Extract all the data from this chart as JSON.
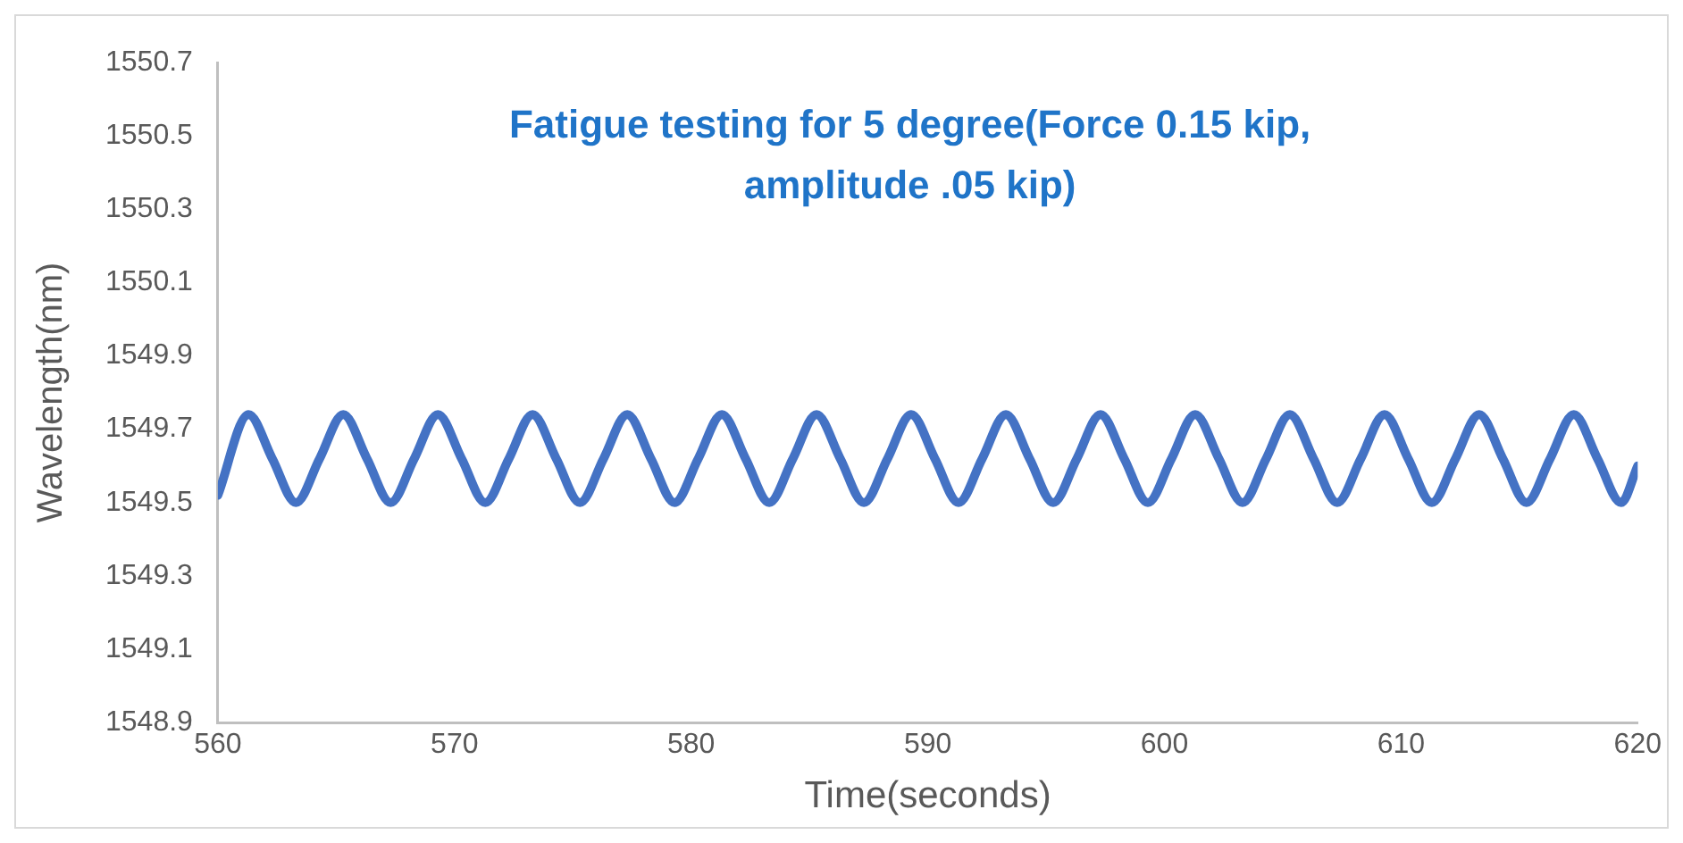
{
  "chart_data": {
    "type": "line",
    "title": "Fatigue testing for 5 degree(Force 0.15 kip, amplitude .05 kip)",
    "xlabel": "Time(seconds)",
    "ylabel": "Wavelength(nm)",
    "x": [
      560,
      561.3,
      562.3,
      563.3,
      564.3,
      565.3,
      566.3,
      567.3,
      568.3,
      569.3,
      570.3,
      571.3,
      572.3,
      573.3,
      574.3,
      575.3,
      576.3,
      577.3,
      578.3,
      579.3,
      580.3,
      581.3,
      582.3,
      583.3,
      584.3,
      585.3,
      586.3,
      587.3,
      588.3,
      589.3,
      590.3,
      591.3,
      592.3,
      593.3,
      594.3,
      595.3,
      596.3,
      597.3,
      598.3,
      599.3,
      600.3,
      601.3,
      602.3,
      603.3,
      604.3,
      605.3,
      606.3,
      607.3,
      608.3,
      609.3,
      610.3,
      611.3,
      612.3,
      613.3,
      614.3,
      615.3,
      616.3,
      617.3,
      618.3,
      619.3,
      620
    ],
    "series": [
      {
        "color": "#4472c4",
        "values": [
          1549.52,
          1549.74,
          1549.62,
          1549.5,
          1549.62,
          1549.74,
          1549.62,
          1549.5,
          1549.62,
          1549.74,
          1549.62,
          1549.5,
          1549.62,
          1549.74,
          1549.62,
          1549.5,
          1549.62,
          1549.74,
          1549.62,
          1549.5,
          1549.62,
          1549.74,
          1549.62,
          1549.5,
          1549.62,
          1549.74,
          1549.62,
          1549.5,
          1549.62,
          1549.74,
          1549.62,
          1549.5,
          1549.62,
          1549.74,
          1549.62,
          1549.5,
          1549.62,
          1549.74,
          1549.62,
          1549.5,
          1549.62,
          1549.74,
          1549.62,
          1549.5,
          1549.62,
          1549.74,
          1549.62,
          1549.5,
          1549.62,
          1549.74,
          1549.62,
          1549.5,
          1549.62,
          1549.74,
          1549.62,
          1549.5,
          1549.62,
          1549.74,
          1549.62,
          1549.5,
          1549.6
        ]
      }
    ],
    "xlim": [
      560,
      620
    ],
    "xticks": [
      560,
      570,
      580,
      590,
      600,
      610,
      620
    ],
    "ylim": [
      1548.9,
      1550.7
    ],
    "yticks": [
      1548.9,
      1549.1,
      1549.3,
      1549.5,
      1549.7,
      1549.9,
      1550.1,
      1550.3,
      1550.5,
      1550.7
    ],
    "grid": false,
    "legend": false,
    "marker": "none",
    "line_style": "solid"
  }
}
